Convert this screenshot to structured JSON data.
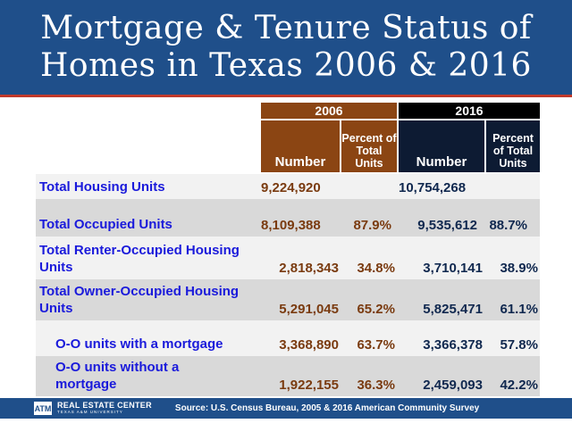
{
  "title": {
    "line1": "Mortgage & Tenure Status of",
    "line2": "Homes in Texas 2006 & 2016"
  },
  "headers": {
    "year_2006": "2006",
    "year_2016": "2016",
    "number_2006": "Number",
    "percent_2006": "Percent of Total Units",
    "number_2016": "Number",
    "percent_2016": "Percent of Total Units"
  },
  "rows": [
    {
      "label": "Total Housing Units",
      "num_2006": "9,224,920",
      "pct_2006": "",
      "num_2016": "10,754,268",
      "pct_2016": ""
    },
    {
      "label": "Total Occupied Units",
      "num_2006": "8,109,388",
      "pct_2006": "87.9%",
      "num_2016": "9,535,612",
      "pct_2016": "88.7%"
    },
    {
      "label": "Total Renter-Occupied Housing Units",
      "num_2006": "2,818,343",
      "pct_2006": "34.8%",
      "num_2016": "3,710,141",
      "pct_2016": "38.9%"
    },
    {
      "label": "Total Owner-Occupied Housing Units",
      "num_2006": "5,291,045",
      "pct_2006": "65.2%",
      "num_2016": "5,825,471",
      "pct_2016": "61.1%"
    },
    {
      "label": "O-O units with a mortgage",
      "num_2006": "3,368,890",
      "pct_2006": "63.7%",
      "num_2016": "3,366,378",
      "pct_2016": "57.8%"
    },
    {
      "label": "O-O units without a mortgage",
      "num_2006": "1,922,155",
      "pct_2006": "36.3%",
      "num_2016": "2,459,093",
      "pct_2016": "42.2%"
    }
  ],
  "footer": {
    "logo_mark": "ATM",
    "logo_name": "REAL ESTATE CENTER",
    "logo_sub": "TEXAS A&M UNIVERSITY",
    "source": "Source: U.S. Census Bureau, 2005 & 2016 American Community Survey"
  },
  "colors": {
    "title_bg": "#1f4f8a",
    "header_2006": "#8b4513",
    "header_2016": "#000000",
    "label_text": "#1a1adb"
  }
}
